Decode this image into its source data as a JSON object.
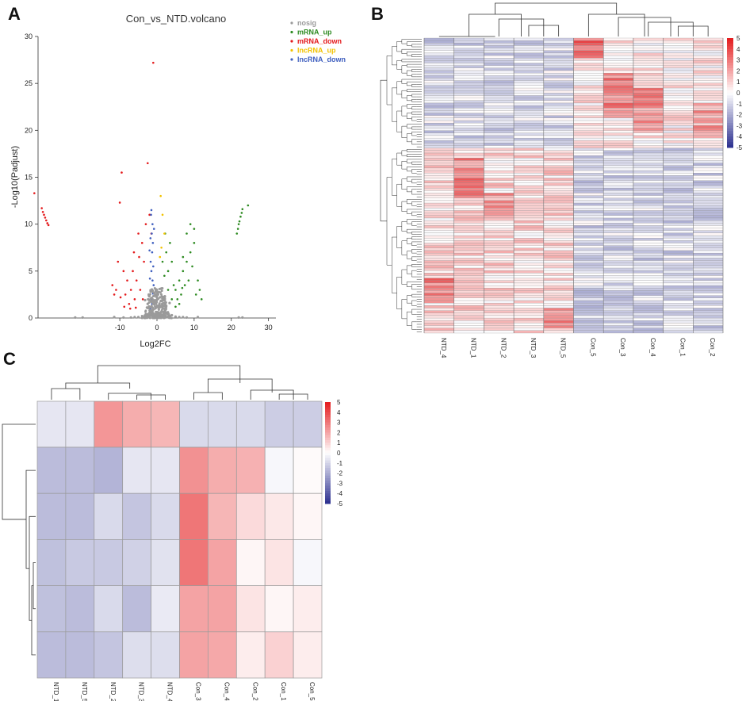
{
  "panels": {
    "a": "A",
    "b": "B",
    "c": "C"
  },
  "colors": {
    "nosig": "#9a9a9a",
    "mRNA_up": "#2e8b22",
    "mRNA_down": "#e41a1c",
    "lncRNA_up": "#f2c200",
    "lncRNA_down": "#3f5fbf",
    "heat_low": "#2b2f8f",
    "heat_mid": "#ffffff",
    "heat_high": "#e41a1c"
  },
  "chart_data": [
    {
      "type": "scatter",
      "title": "Con_vs_NTD.volcano",
      "xlabel": "Log2FC",
      "ylabel": "-Log10(Padjust)",
      "xlim": [
        -32,
        32
      ],
      "ylim": [
        0,
        30
      ],
      "xticks": [
        "-10",
        "0",
        "10",
        "20",
        "30"
      ],
      "yticks": [
        "0",
        "5",
        "10",
        "15",
        "20",
        "25",
        "30"
      ],
      "legend": [
        {
          "key": "nosig",
          "label": "nosig"
        },
        {
          "key": "mRNA_up",
          "label": "mRNA_up"
        },
        {
          "key": "mRNA_down",
          "label": "mRNA_down"
        },
        {
          "key": "lncRNA_up",
          "label": "lncRNA_up"
        },
        {
          "key": "lncRNA_down",
          "label": "lncRNA_down"
        }
      ],
      "series": [
        {
          "name": "nosig",
          "points": [
            [
              -2,
              0.3
            ],
            [
              -1.5,
              0.8
            ],
            [
              -1,
              0.5
            ],
            [
              -0.5,
              1.2
            ],
            [
              0,
              0.4
            ],
            [
              0.5,
              0.9
            ],
            [
              1,
              0.6
            ],
            [
              1.5,
              0.2
            ],
            [
              2,
              0.7
            ],
            [
              -3,
              0.4
            ],
            [
              3,
              0.5
            ],
            [
              -4,
              0.2
            ],
            [
              4,
              0.3
            ],
            [
              -5,
              0.1
            ],
            [
              5,
              0.15
            ],
            [
              -6,
              0.1
            ],
            [
              6,
              0.1
            ],
            [
              -2.5,
              1.5
            ],
            [
              2.5,
              1.3
            ],
            [
              -1.2,
              2
            ],
            [
              1.2,
              1.8
            ],
            [
              0.3,
              2.5
            ],
            [
              -0.3,
              3
            ],
            [
              0.8,
              2.2
            ],
            [
              -0.8,
              1.7
            ],
            [
              0,
              1.9
            ],
            [
              -1.8,
              1.1
            ],
            [
              1.8,
              1
            ],
            [
              -0.2,
              0.05
            ],
            [
              0.2,
              0.08
            ],
            [
              7,
              0.1
            ],
            [
              -7,
              0.05
            ],
            [
              8,
              0.05
            ],
            [
              -9,
              0.05
            ],
            [
              -22,
              0.05
            ],
            [
              -20,
              0.05
            ],
            [
              22,
              0.05
            ],
            [
              23,
              0.05
            ],
            [
              -11.5,
              0.1
            ],
            [
              11,
              0.1
            ],
            [
              -3.2,
              1.9
            ],
            [
              3.4,
              1.6
            ],
            [
              -2.2,
              2.5
            ],
            [
              2.1,
              2.3
            ],
            [
              -0.6,
              0.25
            ],
            [
              0.6,
              0.35
            ],
            [
              1.1,
              0.15
            ],
            [
              -1.1,
              0.15
            ]
          ]
        },
        {
          "name": "mRNA_up",
          "points": [
            [
              5,
              3
            ],
            [
              6,
              4
            ],
            [
              7,
              5
            ],
            [
              8,
              6
            ],
            [
              9,
              7
            ],
            [
              10,
              8
            ],
            [
              5.5,
              2
            ],
            [
              6.5,
              2.5
            ],
            [
              7.5,
              3.5
            ],
            [
              3,
              5
            ],
            [
              4,
              6
            ],
            [
              2.5,
              7
            ],
            [
              3.5,
              8
            ],
            [
              8.5,
              4
            ],
            [
              9.5,
              5.5
            ],
            [
              10.5,
              2.5
            ],
            [
              11,
              4
            ],
            [
              6,
              1.5
            ],
            [
              4.5,
              3.5
            ],
            [
              2,
              4.5
            ],
            [
              7,
              6.5
            ],
            [
              8,
              9
            ],
            [
              9,
              10
            ],
            [
              10,
              9.5
            ],
            [
              21.5,
              9
            ],
            [
              21.8,
              9.5
            ],
            [
              22,
              10
            ],
            [
              22.2,
              10.3
            ],
            [
              22.5,
              10.8
            ],
            [
              22.8,
              11.2
            ],
            [
              23,
              11.6
            ],
            [
              24.5,
              12
            ],
            [
              3,
              3
            ],
            [
              4,
              2
            ],
            [
              5,
              1.2
            ],
            [
              2.2,
              9
            ],
            [
              1.5,
              6
            ],
            [
              6.8,
              3.2
            ],
            [
              11.5,
              3
            ],
            [
              12,
              2
            ]
          ]
        },
        {
          "name": "mRNA_down",
          "points": [
            [
              -33,
              13.3
            ],
            [
              -31,
              11.7
            ],
            [
              -30.7,
              11.3
            ],
            [
              -30.4,
              11
            ],
            [
              -30.1,
              10.7
            ],
            [
              -29.8,
              10.4
            ],
            [
              -29.5,
              10.1
            ],
            [
              -29.2,
              9.9
            ],
            [
              -10,
              12.3
            ],
            [
              -9.5,
              15.5
            ],
            [
              -8,
              4
            ],
            [
              -7,
              3
            ],
            [
              -6,
              2
            ],
            [
              -9,
              5
            ],
            [
              -8.5,
              2.5
            ],
            [
              -7.5,
              1.5
            ],
            [
              -10.5,
              6
            ],
            [
              -11,
              3
            ],
            [
              -6.5,
              5
            ],
            [
              -5.5,
              4
            ],
            [
              -4.5,
              3
            ],
            [
              -3.5,
              6
            ],
            [
              -4,
              8
            ],
            [
              -5,
              9
            ],
            [
              -3,
              10
            ],
            [
              -2.5,
              16.5
            ],
            [
              -2,
              11
            ],
            [
              -1.5,
              9
            ],
            [
              -3.8,
              2
            ],
            [
              -9.8,
              2.2
            ],
            [
              -8.8,
              1.2
            ],
            [
              -11.5,
              2.5
            ],
            [
              -12,
              3.5
            ],
            [
              -4.8,
              6.5
            ],
            [
              -6.2,
              7
            ],
            [
              -1,
              27.2
            ],
            [
              -7.2,
              1
            ],
            [
              -5.7,
              1.1
            ]
          ]
        },
        {
          "name": "lncRNA_up",
          "points": [
            [
              1,
              13
            ],
            [
              1.5,
              11
            ],
            [
              2,
              9
            ],
            [
              1.2,
              7.5
            ],
            [
              0.8,
              6.5
            ]
          ]
        },
        {
          "name": "lncRNA_down",
          "points": [
            [
              -1.8,
              1
            ],
            [
              -1.6,
              2
            ],
            [
              -1.4,
              3
            ],
            [
              -1.2,
              4
            ],
            [
              -1.5,
              5
            ],
            [
              -1.7,
              6
            ],
            [
              -1.3,
              7
            ],
            [
              -1.1,
              8
            ],
            [
              -1.4,
              9
            ],
            [
              -1.2,
              10
            ],
            [
              -1.6,
              11
            ],
            [
              -1.5,
              11.5
            ],
            [
              -1,
              5.5
            ],
            [
              -0.9,
              3.5
            ],
            [
              -1.9,
              4.2
            ],
            [
              -2,
              7.2
            ],
            [
              -0.8,
              9.5
            ],
            [
              -1.3,
              1.5
            ],
            [
              -1.05,
              2.6
            ],
            [
              -1.75,
              8.5
            ]
          ]
        }
      ]
    },
    {
      "type": "heatmap",
      "columns": [
        "NTD_4",
        "NTD_1",
        "NTD_2",
        "NTD_3",
        "NTD_5",
        "Con_5",
        "Con_3",
        "Con_4",
        "Con_1",
        "Con_2"
      ],
      "row_count": 118,
      "color_scale": {
        "min": -5,
        "max": 5,
        "ticks": [
          "5",
          "4",
          "3",
          "2",
          "1",
          "0",
          "-1",
          "-2",
          "-3",
          "-4",
          "-5"
        ]
      }
    },
    {
      "type": "heatmap",
      "columns": [
        "NTD_1",
        "NTD_5",
        "NTD_2",
        "NTD_3",
        "NTD_4",
        "Con_3",
        "Con_4",
        "Con_2",
        "Con_1",
        "Con_5"
      ],
      "values": [
        [
          -0.6,
          -0.6,
          2.3,
          1.8,
          1.6,
          -0.9,
          -0.9,
          -0.9,
          -1.2,
          -1.2
        ],
        [
          -1.6,
          -1.6,
          -1.8,
          -0.6,
          -0.6,
          2.4,
          1.8,
          1.7,
          -0.2,
          0.1
        ],
        [
          -1.6,
          -1.6,
          -0.9,
          -1.4,
          -0.9,
          3.0,
          1.6,
          0.8,
          0.5,
          0.2
        ],
        [
          -1.5,
          -1.3,
          -1.3,
          -1.1,
          -0.7,
          3.0,
          2.0,
          0.2,
          0.6,
          -0.2
        ],
        [
          -1.5,
          -1.6,
          -0.9,
          -1.6,
          -0.5,
          2.0,
          2.0,
          0.6,
          0.2,
          0.4
        ],
        [
          -1.6,
          -1.6,
          -1.4,
          -0.8,
          -0.8,
          2.0,
          1.9,
          0.4,
          1.0,
          0.4
        ]
      ],
      "color_scale": {
        "min": -5,
        "max": 5,
        "ticks": [
          "5",
          "4",
          "3",
          "2",
          "1",
          "0",
          "-1",
          "-2",
          "-3",
          "-4",
          "-5"
        ]
      }
    }
  ]
}
